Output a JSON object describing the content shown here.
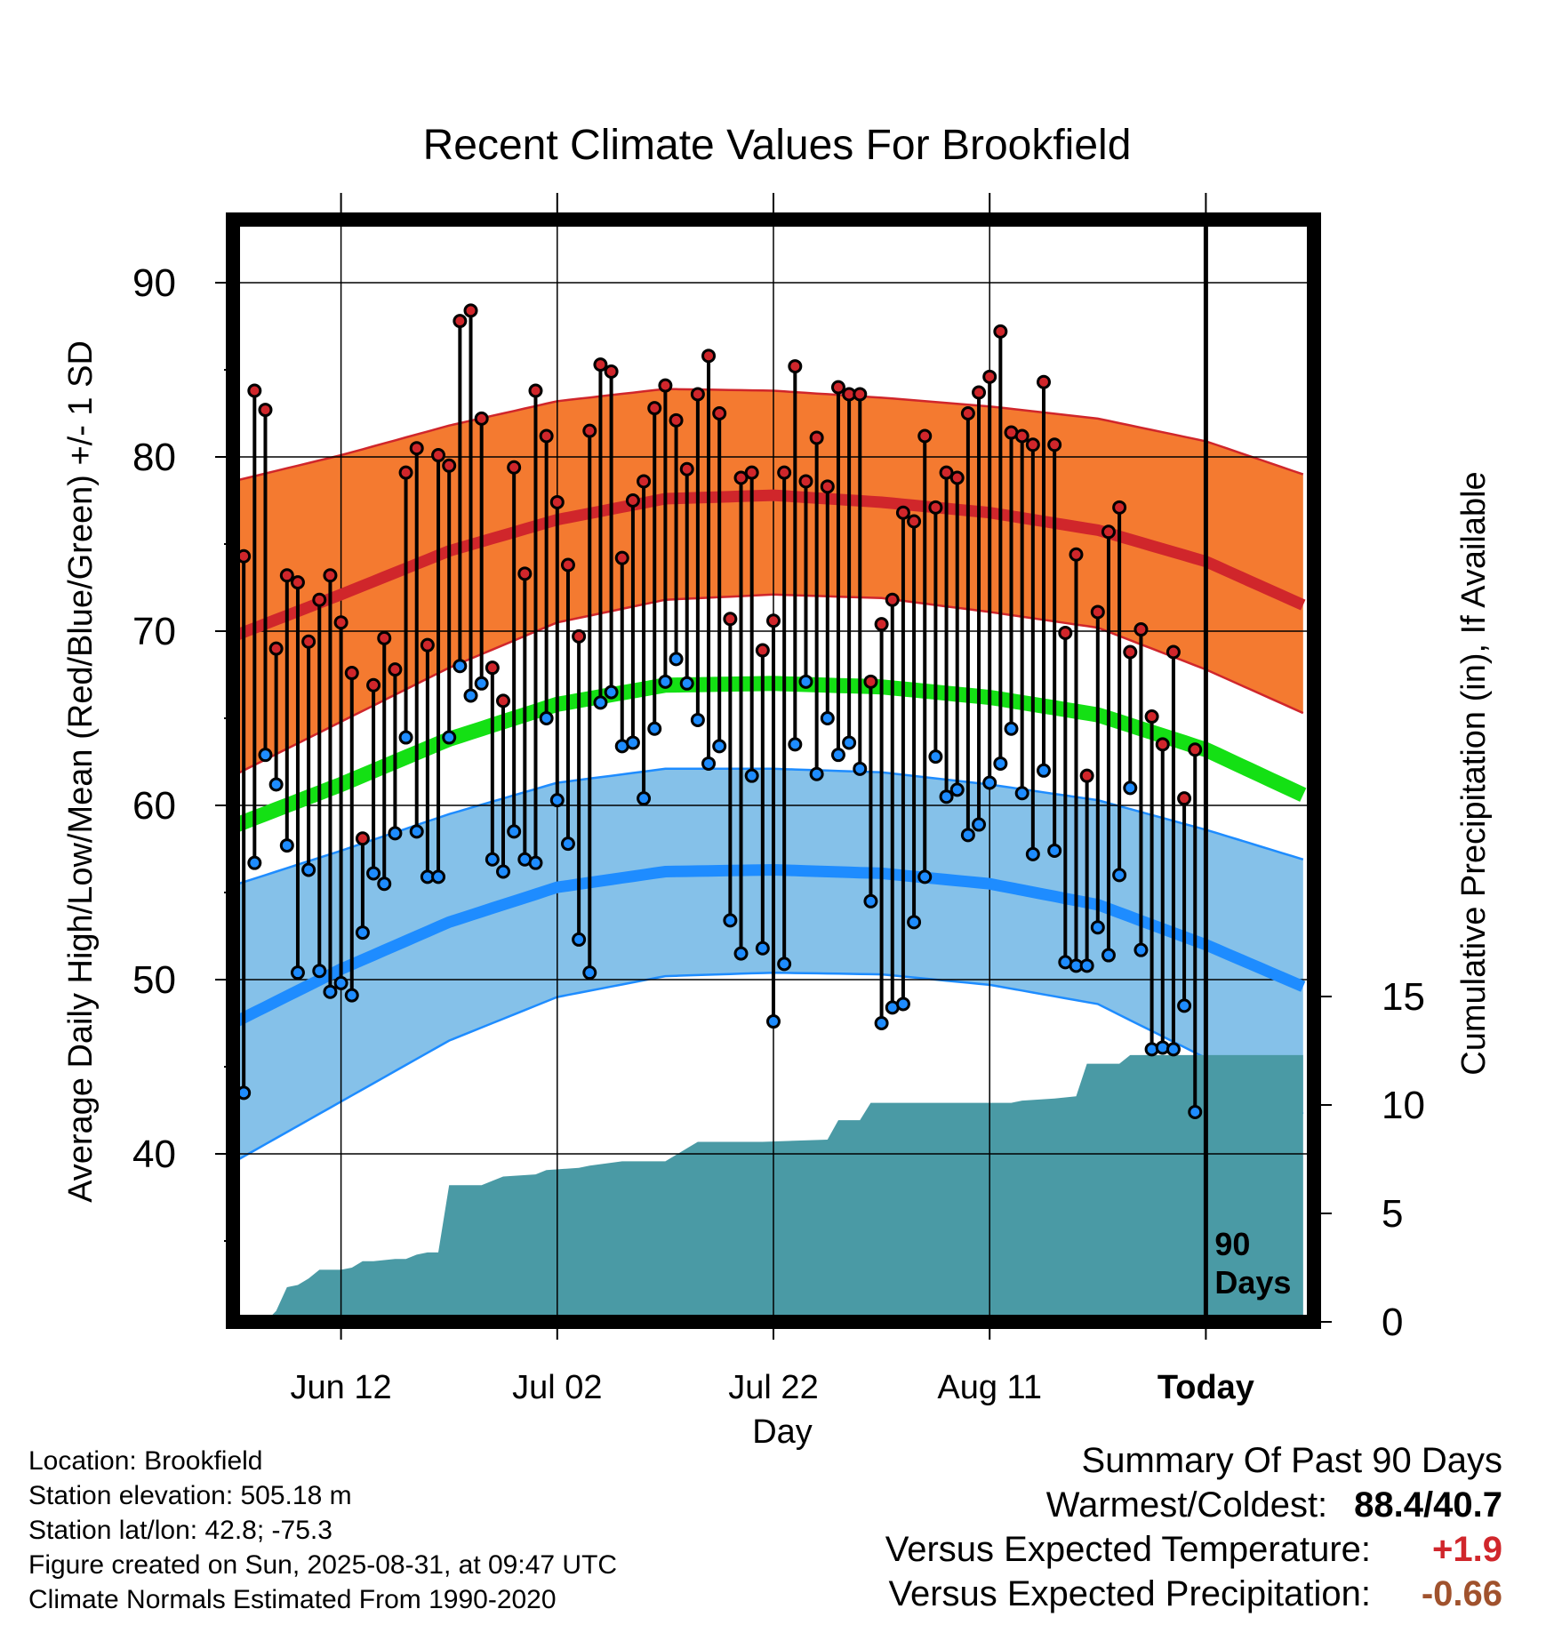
{
  "title": "Recent Climate Values For Brookfield",
  "chart_data": {
    "type": "line",
    "title": "Recent Climate Values For Brookfield",
    "xlabel": "Day",
    "ylabel_left": "Average Daily High/Low/Mean (Red/Blue/Green) +/- 1 SD",
    "ylabel_right": "Cumulative Precipitation (in), If Available",
    "x_ticks": [
      "Jun 12",
      "Jul 02",
      "Jul 22",
      "Aug 11",
      "Today"
    ],
    "y_left_ticks": [
      40,
      50,
      60,
      70,
      80,
      90
    ],
    "y_left_range": [
      31,
      94
    ],
    "y_right_ticks": [
      0,
      5,
      10,
      15
    ],
    "y_right_range": [
      0,
      30
    ],
    "days": 90,
    "today_marker_label": [
      "90",
      "Days"
    ],
    "normals": {
      "high_mean": [
        [
          0,
          69.7
        ],
        [
          10,
          72.1
        ],
        [
          20,
          74.6
        ],
        [
          30,
          76.4
        ],
        [
          40,
          77.6
        ],
        [
          50,
          77.8
        ],
        [
          60,
          77.4
        ],
        [
          70,
          76.8
        ],
        [
          80,
          75.8
        ],
        [
          90,
          74.0
        ],
        [
          99,
          71.5
        ]
      ],
      "high_upper": [
        [
          0,
          78.6
        ],
        [
          10,
          80.1
        ],
        [
          20,
          81.8
        ],
        [
          30,
          83.2
        ],
        [
          40,
          83.9
        ],
        [
          50,
          83.8
        ],
        [
          60,
          83.4
        ],
        [
          70,
          82.9
        ],
        [
          80,
          82.2
        ],
        [
          90,
          80.9
        ],
        [
          99,
          79.0
        ]
      ],
      "high_lower": [
        [
          0,
          61.7
        ],
        [
          10,
          64.8
        ],
        [
          20,
          67.9
        ],
        [
          30,
          70.5
        ],
        [
          40,
          71.8
        ],
        [
          50,
          72.1
        ],
        [
          60,
          71.9
        ],
        [
          70,
          71.1
        ],
        [
          80,
          70.2
        ],
        [
          90,
          67.8
        ],
        [
          99,
          65.3
        ]
      ],
      "mean": [
        [
          0,
          58.8
        ],
        [
          10,
          61.2
        ],
        [
          20,
          63.8
        ],
        [
          30,
          65.8
        ],
        [
          40,
          66.9
        ],
        [
          50,
          67.0
        ],
        [
          60,
          66.8
        ],
        [
          70,
          66.2
        ],
        [
          80,
          65.2
        ],
        [
          90,
          63.2
        ],
        [
          99,
          60.6
        ]
      ],
      "low_mean": [
        [
          0,
          47.5
        ],
        [
          10,
          50.6
        ],
        [
          20,
          53.3
        ],
        [
          30,
          55.3
        ],
        [
          40,
          56.2
        ],
        [
          50,
          56.3
        ],
        [
          60,
          56.1
        ],
        [
          70,
          55.5
        ],
        [
          80,
          54.3
        ],
        [
          90,
          52.0
        ],
        [
          99,
          49.6
        ]
      ],
      "low_upper": [
        [
          0,
          55.4
        ],
        [
          10,
          57.4
        ],
        [
          20,
          59.5
        ],
        [
          30,
          61.3
        ],
        [
          40,
          62.1
        ],
        [
          50,
          62.1
        ],
        [
          60,
          61.9
        ],
        [
          70,
          61.2
        ],
        [
          80,
          60.3
        ],
        [
          90,
          58.6
        ],
        [
          99,
          56.9
        ]
      ],
      "low_lower": [
        [
          0,
          39.5
        ],
        [
          10,
          43.0
        ],
        [
          20,
          46.5
        ],
        [
          30,
          49.0
        ],
        [
          40,
          50.2
        ],
        [
          50,
          50.4
        ],
        [
          60,
          50.3
        ],
        [
          70,
          49.7
        ],
        [
          80,
          48.6
        ],
        [
          90,
          45.5
        ],
        [
          99,
          42.3
        ]
      ]
    },
    "observations": [
      {
        "day": 0,
        "high": 64.4,
        "low": 40.7
      },
      {
        "day": 1,
        "high": 74.3,
        "low": 43.5
      },
      {
        "day": 2,
        "high": 83.8,
        "low": 56.7
      },
      {
        "day": 3,
        "high": 82.7,
        "low": 62.9
      },
      {
        "day": 4,
        "high": 69.0,
        "low": 61.2
      },
      {
        "day": 5,
        "high": 73.2,
        "low": 57.7
      },
      {
        "day": 6,
        "high": 72.8,
        "low": 50.4
      },
      {
        "day": 7,
        "high": 69.4,
        "low": 56.3
      },
      {
        "day": 8,
        "high": 71.8,
        "low": 50.5
      },
      {
        "day": 9,
        "high": 73.2,
        "low": 49.3
      },
      {
        "day": 10,
        "high": 70.5,
        "low": 49.8
      },
      {
        "day": 11,
        "high": 67.6,
        "low": 49.1
      },
      {
        "day": 12,
        "high": 58.1,
        "low": 52.7
      },
      {
        "day": 13,
        "high": 66.9,
        "low": 56.1
      },
      {
        "day": 14,
        "high": 69.6,
        "low": 55.5
      },
      {
        "day": 15,
        "high": 67.8,
        "low": 58.4
      },
      {
        "day": 16,
        "high": 79.1,
        "low": 63.9
      },
      {
        "day": 17,
        "high": 80.5,
        "low": 58.5
      },
      {
        "day": 18,
        "high": 69.2,
        "low": 55.9
      },
      {
        "day": 19,
        "high": 80.1,
        "low": 55.9
      },
      {
        "day": 20,
        "high": 79.5,
        "low": 63.9
      },
      {
        "day": 21,
        "high": 87.8,
        "low": 68.0
      },
      {
        "day": 22,
        "high": 88.4,
        "low": 66.3
      },
      {
        "day": 23,
        "high": 82.2,
        "low": 67.0
      },
      {
        "day": 24,
        "high": 67.9,
        "low": 56.9
      },
      {
        "day": 25,
        "high": 66.0,
        "low": 56.2
      },
      {
        "day": 26,
        "high": 79.4,
        "low": 58.5
      },
      {
        "day": 27,
        "high": 73.3,
        "low": 56.9
      },
      {
        "day": 28,
        "high": 83.8,
        "low": 56.7
      },
      {
        "day": 29,
        "high": 81.2,
        "low": 65.0
      },
      {
        "day": 30,
        "high": 77.4,
        "low": 60.3
      },
      {
        "day": 31,
        "high": 73.8,
        "low": 57.8
      },
      {
        "day": 32,
        "high": 69.7,
        "low": 52.3
      },
      {
        "day": 33,
        "high": 81.5,
        "low": 50.4
      },
      {
        "day": 34,
        "high": 85.3,
        "low": 65.9
      },
      {
        "day": 35,
        "high": 84.9,
        "low": 66.5
      },
      {
        "day": 36,
        "high": 74.2,
        "low": 63.4
      },
      {
        "day": 37,
        "high": 77.5,
        "low": 63.6
      },
      {
        "day": 38,
        "high": 78.6,
        "low": 60.4
      },
      {
        "day": 39,
        "high": 82.8,
        "low": 64.4
      },
      {
        "day": 40,
        "high": 84.1,
        "low": 67.1
      },
      {
        "day": 41,
        "high": 82.1,
        "low": 68.4
      },
      {
        "day": 42,
        "high": 79.3,
        "low": 67.0
      },
      {
        "day": 43,
        "high": 83.6,
        "low": 64.9
      },
      {
        "day": 44,
        "high": 85.8,
        "low": 62.4
      },
      {
        "day": 45,
        "high": 82.5,
        "low": 63.4
      },
      {
        "day": 46,
        "high": 70.7,
        "low": 53.4
      },
      {
        "day": 47,
        "high": 78.8,
        "low": 51.5
      },
      {
        "day": 48,
        "high": 79.1,
        "low": 61.7
      },
      {
        "day": 49,
        "high": 68.9,
        "low": 51.8
      },
      {
        "day": 50,
        "high": 70.6,
        "low": 47.6
      },
      {
        "day": 51,
        "high": 79.1,
        "low": 50.9
      },
      {
        "day": 52,
        "high": 85.2,
        "low": 63.5
      },
      {
        "day": 53,
        "high": 78.6,
        "low": 67.1
      },
      {
        "day": 54,
        "high": 81.1,
        "low": 61.8
      },
      {
        "day": 55,
        "high": 78.3,
        "low": 65.0
      },
      {
        "day": 56,
        "high": 84.0,
        "low": 62.9
      },
      {
        "day": 57,
        "high": 83.6,
        "low": 63.6
      },
      {
        "day": 58,
        "high": 83.6,
        "low": 62.1
      },
      {
        "day": 59,
        "high": 67.1,
        "low": 54.5
      },
      {
        "day": 60,
        "high": 70.4,
        "low": 47.5
      },
      {
        "day": 61,
        "high": 71.8,
        "low": 48.4
      },
      {
        "day": 62,
        "high": 76.8,
        "low": 48.6
      },
      {
        "day": 63,
        "high": 76.3,
        "low": 53.3
      },
      {
        "day": 64,
        "high": 81.2,
        "low": 55.9
      },
      {
        "day": 65,
        "high": 77.1,
        "low": 62.8
      },
      {
        "day": 66,
        "high": 79.1,
        "low": 60.5
      },
      {
        "day": 67,
        "high": 78.8,
        "low": 60.9
      },
      {
        "day": 68,
        "high": 82.5,
        "low": 58.3
      },
      {
        "day": 69,
        "high": 83.7,
        "low": 58.9
      },
      {
        "day": 70,
        "high": 84.6,
        "low": 61.3
      },
      {
        "day": 71,
        "high": 87.2,
        "low": 62.4
      },
      {
        "day": 72,
        "high": 81.4,
        "low": 64.4
      },
      {
        "day": 73,
        "high": 81.2,
        "low": 60.7
      },
      {
        "day": 74,
        "high": 80.7,
        "low": 57.2
      },
      {
        "day": 75,
        "high": 84.3,
        "low": 62.0
      },
      {
        "day": 76,
        "high": 80.7,
        "low": 57.4
      },
      {
        "day": 77,
        "high": 69.9,
        "low": 51.0
      },
      {
        "day": 78,
        "high": 74.4,
        "low": 50.8
      },
      {
        "day": 79,
        "high": 61.7,
        "low": 50.8
      },
      {
        "day": 80,
        "high": 71.1,
        "low": 53.0
      },
      {
        "day": 81,
        "high": 75.7,
        "low": 51.4
      },
      {
        "day": 82,
        "high": 77.1,
        "low": 56.0
      },
      {
        "day": 83,
        "high": 68.8,
        "low": 61.0
      },
      {
        "day": 84,
        "high": 70.1,
        "low": 51.7
      },
      {
        "day": 85,
        "high": 65.1,
        "low": 46.0
      },
      {
        "day": 86,
        "high": 63.5,
        "low": 46.1
      },
      {
        "day": 87,
        "high": 68.8,
        "low": 46.0
      },
      {
        "day": 88,
        "high": 60.4,
        "low": 48.5
      },
      {
        "day": 89,
        "high": 63.2,
        "low": 42.4
      }
    ],
    "cumulative_precip": [
      [
        0,
        0
      ],
      [
        3,
        0
      ],
      [
        4,
        0.5
      ],
      [
        5,
        1.6
      ],
      [
        6,
        1.7
      ],
      [
        7,
        2.0
      ],
      [
        8,
        2.4
      ],
      [
        9,
        2.4
      ],
      [
        10,
        2.4
      ],
      [
        11,
        2.5
      ],
      [
        12,
        2.8
      ],
      [
        13,
        2.8
      ],
      [
        15,
        2.9
      ],
      [
        16,
        2.9
      ],
      [
        17,
        3.1
      ],
      [
        18,
        3.2
      ],
      [
        19,
        3.2
      ],
      [
        20,
        6.3
      ],
      [
        23,
        6.3
      ],
      [
        24,
        6.5
      ],
      [
        25,
        6.7
      ],
      [
        28,
        6.8
      ],
      [
        29,
        7.0
      ],
      [
        32,
        7.1
      ],
      [
        33,
        7.2
      ],
      [
        36,
        7.4
      ],
      [
        40,
        7.4
      ],
      [
        42,
        8.0
      ],
      [
        43,
        8.3
      ],
      [
        49,
        8.3
      ],
      [
        55,
        8.4
      ],
      [
        56,
        9.3
      ],
      [
        58,
        9.3
      ],
      [
        59,
        10.1
      ],
      [
        66,
        10.1
      ],
      [
        72,
        10.1
      ],
      [
        73,
        10.2
      ],
      [
        76,
        10.3
      ],
      [
        78,
        10.4
      ],
      [
        79,
        11.9
      ],
      [
        82,
        11.9
      ],
      [
        83,
        12.3
      ],
      [
        99,
        12.3
      ]
    ]
  },
  "colors": {
    "high_band": "#f47a30",
    "high_line": "#d0262b",
    "mean_line": "#14e014",
    "low_band": "#85c1e9",
    "low_line": "#1e8cff",
    "precip_fill": "#4a9aa5",
    "high_point": "#d0262b",
    "low_point": "#1e8cff",
    "warm_value": "#d0262b",
    "precip_value": "#a0522d"
  },
  "info": {
    "location": "Location: Brookfield",
    "elevation": "Station elevation: 505.18 m",
    "latlon": "Station lat/lon: 42.8; -75.3",
    "created": "Figure created on Sun, 2025-08-31, at 09:47 UTC",
    "normals": "Climate Normals Estimated From 1990-2020"
  },
  "summary": {
    "heading": "Summary Of Past 90 Days",
    "warm_cold_label": "Warmest/Coldest:",
    "warm_cold_value": "88.4/40.7",
    "temp_label": "Versus Expected Temperature:",
    "temp_value": "+1.9",
    "precip_label": "Versus Expected Precipitation:",
    "precip_value": "-0.66"
  }
}
